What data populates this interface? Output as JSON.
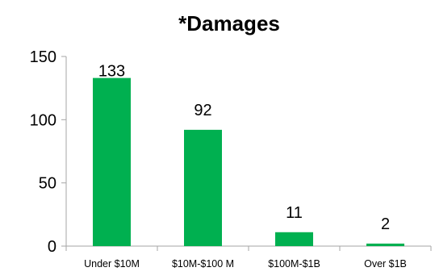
{
  "chart_data": {
    "type": "bar",
    "title": "*Damages",
    "categories": [
      "Under $10M",
      "$10M-$100 M",
      "$100M-$1B",
      "Over $1B"
    ],
    "values": [
      133,
      92,
      11,
      2
    ],
    "data_labels": [
      "133",
      "92",
      "11",
      "2"
    ],
    "ylim": [
      0,
      150
    ],
    "yticks": [
      0,
      50,
      100,
      150
    ],
    "ytick_labels": [
      "0",
      "50",
      "100",
      "150"
    ],
    "xlabel": "",
    "ylabel": "",
    "grid": false,
    "legend": "none",
    "bar_color": "#00b050",
    "axis_color": "#a6a6a6"
  }
}
